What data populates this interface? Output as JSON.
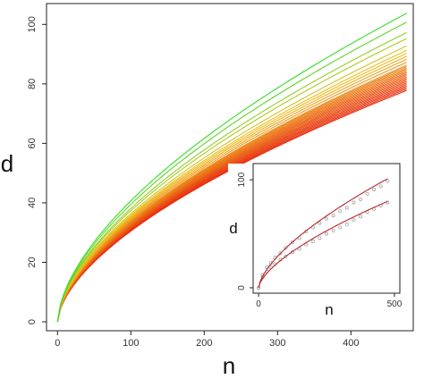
{
  "chart_data": [
    {
      "type": "line",
      "xlabel": "n",
      "ylabel": "d",
      "xlim": [
        -15,
        485
      ],
      "ylim": [
        -3,
        107
      ],
      "x_ticks": [
        0,
        100,
        200,
        300,
        400
      ],
      "y_ticks": [
        0,
        20,
        40,
        60,
        80,
        100
      ],
      "grid": false,
      "series_final_d": [
        104,
        101,
        97.5,
        95.5,
        93,
        91.5,
        90.5,
        89.5,
        88.5,
        87.5,
        86.5,
        86,
        85.5,
        85,
        84.5,
        84,
        83.5,
        83,
        82.5,
        82,
        81.5,
        81,
        80.5,
        80,
        79.5,
        79,
        78.5,
        78
      ],
      "x_max": 478,
      "colors": {
        "high": "#33dd22",
        "mid": "#f0c020",
        "low": "#e82a10"
      }
    },
    {
      "type": "scatter",
      "xlabel": "n",
      "ylabel": "d",
      "xlim": [
        -20,
        520
      ],
      "ylim": [
        -5,
        115
      ],
      "x_ticks": [
        0,
        500
      ],
      "y_ticks": [
        0,
        100
      ],
      "series": [
        {
          "x": [
            0,
            15,
            30,
            45,
            60,
            80,
            100,
            125,
            150,
            175,
            200,
            225,
            250,
            275,
            300,
            325,
            350,
            375,
            400,
            425,
            450,
            475
          ],
          "y": [
            0,
            12,
            19,
            23,
            28,
            32,
            37,
            42,
            46,
            52,
            56,
            60,
            64,
            67,
            71,
            74,
            79,
            82,
            87,
            91,
            94,
            99
          ],
          "fit_end": 101
        },
        {
          "x": [
            0,
            15,
            30,
            45,
            60,
            80,
            100,
            125,
            150,
            175,
            200,
            225,
            250,
            275,
            300,
            325,
            350,
            375,
            400,
            425,
            450,
            475
          ],
          "y": [
            0,
            10,
            15,
            19,
            22,
            26,
            29,
            33,
            36,
            40,
            43,
            46,
            50,
            53,
            56,
            59,
            63,
            66,
            70,
            73,
            76,
            79
          ],
          "fit_end": 80
        }
      ],
      "colors": {
        "fit": "#b52a2a",
        "points": "#999999"
      }
    }
  ]
}
